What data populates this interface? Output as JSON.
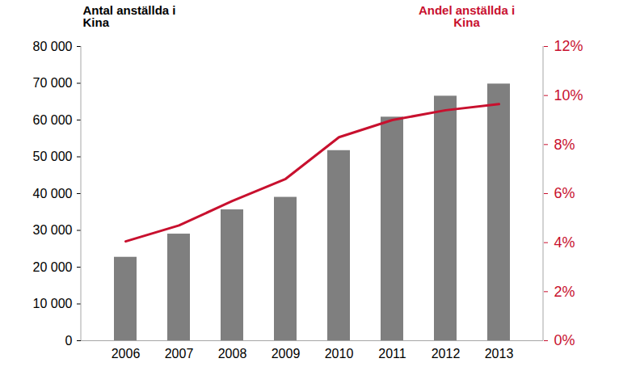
{
  "chart_data": {
    "type": "bar",
    "categories": [
      "2006",
      "2007",
      "2008",
      "2009",
      "2010",
      "2011",
      "2012",
      "2013"
    ],
    "series": [
      {
        "name": "Antal anställda i\nKina",
        "type": "bar",
        "color": "#7f7f7f",
        "values": [
          22700,
          29000,
          35600,
          39000,
          51700,
          60800,
          66500,
          69800
        ]
      },
      {
        "name": "Andel anställda i\nKina",
        "type": "line",
        "axis": "y2",
        "color": "#c8102e",
        "values": [
          4.05,
          4.7,
          5.7,
          6.6,
          8.3,
          9.0,
          9.4,
          9.65
        ]
      }
    ],
    "ylim": [
      0,
      80000
    ],
    "yticks": [
      0,
      {
        "value": 10000,
        "label": "10 000"
      },
      {
        "value": 20000,
        "label": "20 000"
      },
      {
        "value": 30000,
        "label": "30 000"
      },
      {
        "value": 40000,
        "label": "40 000"
      },
      {
        "value": 50000,
        "label": "50 000"
      },
      {
        "value": 60000,
        "label": "60 000"
      },
      {
        "value": 70000,
        "label": "70 000"
      },
      {
        "value": 80000,
        "label": "80 000"
      }
    ],
    "y2lim": [
      0,
      12
    ],
    "y2ticks": [
      {
        "value": 0,
        "label": "0%"
      },
      {
        "value": 2,
        "label": "2%"
      },
      {
        "value": 4,
        "label": "4%"
      },
      {
        "value": 6,
        "label": "6%"
      },
      {
        "value": 8,
        "label": "8%"
      },
      {
        "value": 10,
        "label": "10%"
      },
      {
        "value": 12,
        "label": "12%"
      }
    ],
    "grid": false
  }
}
